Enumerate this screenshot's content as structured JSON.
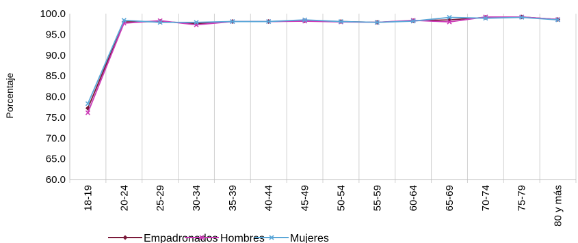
{
  "chart_data": {
    "type": "line",
    "title": "",
    "xlabel": "",
    "ylabel": "Porcentaje",
    "ylim": [
      60,
      100
    ],
    "yticks": [
      "60.0",
      "65.0",
      "70.0",
      "75.0",
      "80.0",
      "85.0",
      "90.0",
      "95.0",
      "100.0"
    ],
    "grid": "vertical",
    "legend_position": "bottom",
    "categories": [
      "18-19",
      "20-24",
      "25-29",
      "30-34",
      "35-39",
      "40-44",
      "45-49",
      "50-54",
      "55-59",
      "60-64",
      "65-69",
      "70-74",
      "75-79",
      "80 y más"
    ],
    "series": [
      {
        "name": "Empadronados",
        "color": "#7b1a3a",
        "marker": "diamond",
        "values": [
          77.2,
          98.0,
          98.1,
          97.6,
          98.1,
          98.1,
          98.3,
          98.1,
          97.9,
          98.3,
          98.5,
          99.1,
          99.2,
          98.6
        ]
      },
      {
        "name": "Hombres",
        "color": "#cc3cb8",
        "marker": "x",
        "values": [
          76.1,
          97.7,
          98.3,
          97.3,
          98.1,
          98.1,
          98.2,
          98.0,
          97.9,
          98.4,
          98.0,
          99.2,
          99.2,
          98.6
        ]
      },
      {
        "name": "Mujeres",
        "color": "#5ba7d8",
        "marker": "x",
        "values": [
          78.3,
          98.4,
          97.9,
          97.9,
          98.1,
          98.1,
          98.5,
          98.1,
          97.9,
          98.2,
          99.1,
          98.9,
          99.1,
          98.5
        ]
      }
    ]
  }
}
